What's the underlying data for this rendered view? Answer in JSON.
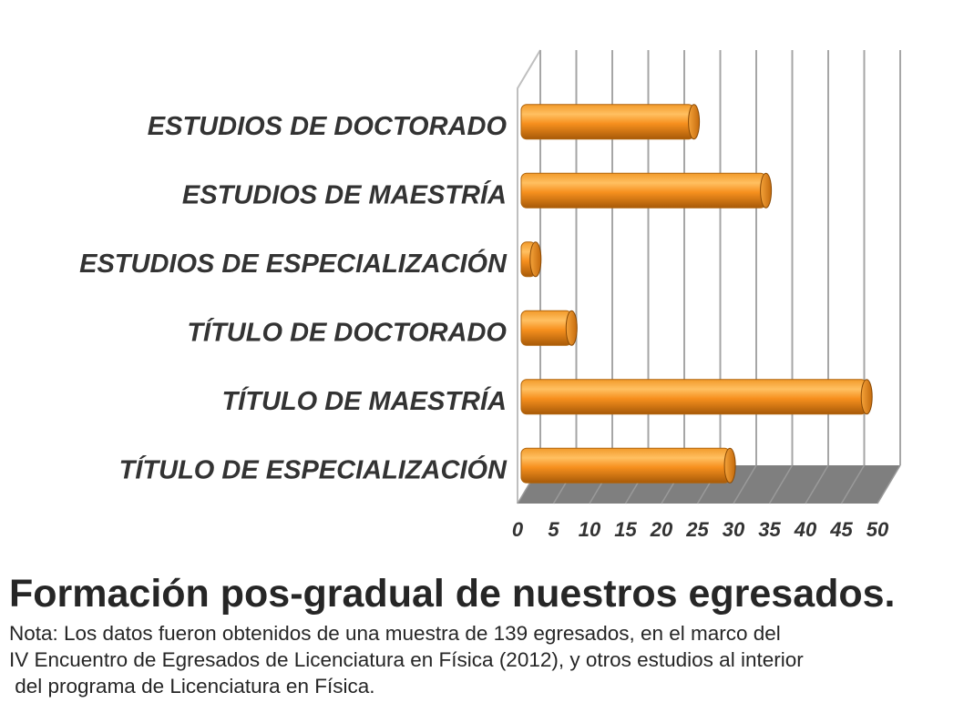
{
  "chart_data": {
    "type": "bar",
    "orientation": "horizontal",
    "style": "3d-cylinder",
    "categories": [
      "ESTUDIOS DE DOCTORADO",
      "ESTUDIOS DE MAESTRÍA",
      "ESTUDIOS DE ESPECIALIZACIÓN",
      "TÍTULO DE DOCTORADO",
      "TÍTULO DE MAESTRÍA",
      "TÍTULO DE ESPECIALIZACIÓN"
    ],
    "values": [
      24,
      34,
      2,
      7,
      48,
      29
    ],
    "xticks": [
      "0",
      "5",
      "10",
      "15",
      "20",
      "25",
      "30",
      "35",
      "40",
      "45",
      "50"
    ],
    "xlim": [
      0,
      50
    ],
    "grid": true,
    "legend": "none",
    "bar_color": "#f7901e",
    "floor_color": "#7f7f7f"
  },
  "caption": {
    "title": "Formación pos-gradual de nuestros egresados.",
    "note_lines": [
      "Nota: Los datos fueron obtenidos de una muestra de 139 egresados, en el marco del",
      "IV Encuentro de Egresados de Licenciatura en Física (2012), y otros estudios al interior",
      " del programa de Licenciatura en Física."
    ]
  }
}
